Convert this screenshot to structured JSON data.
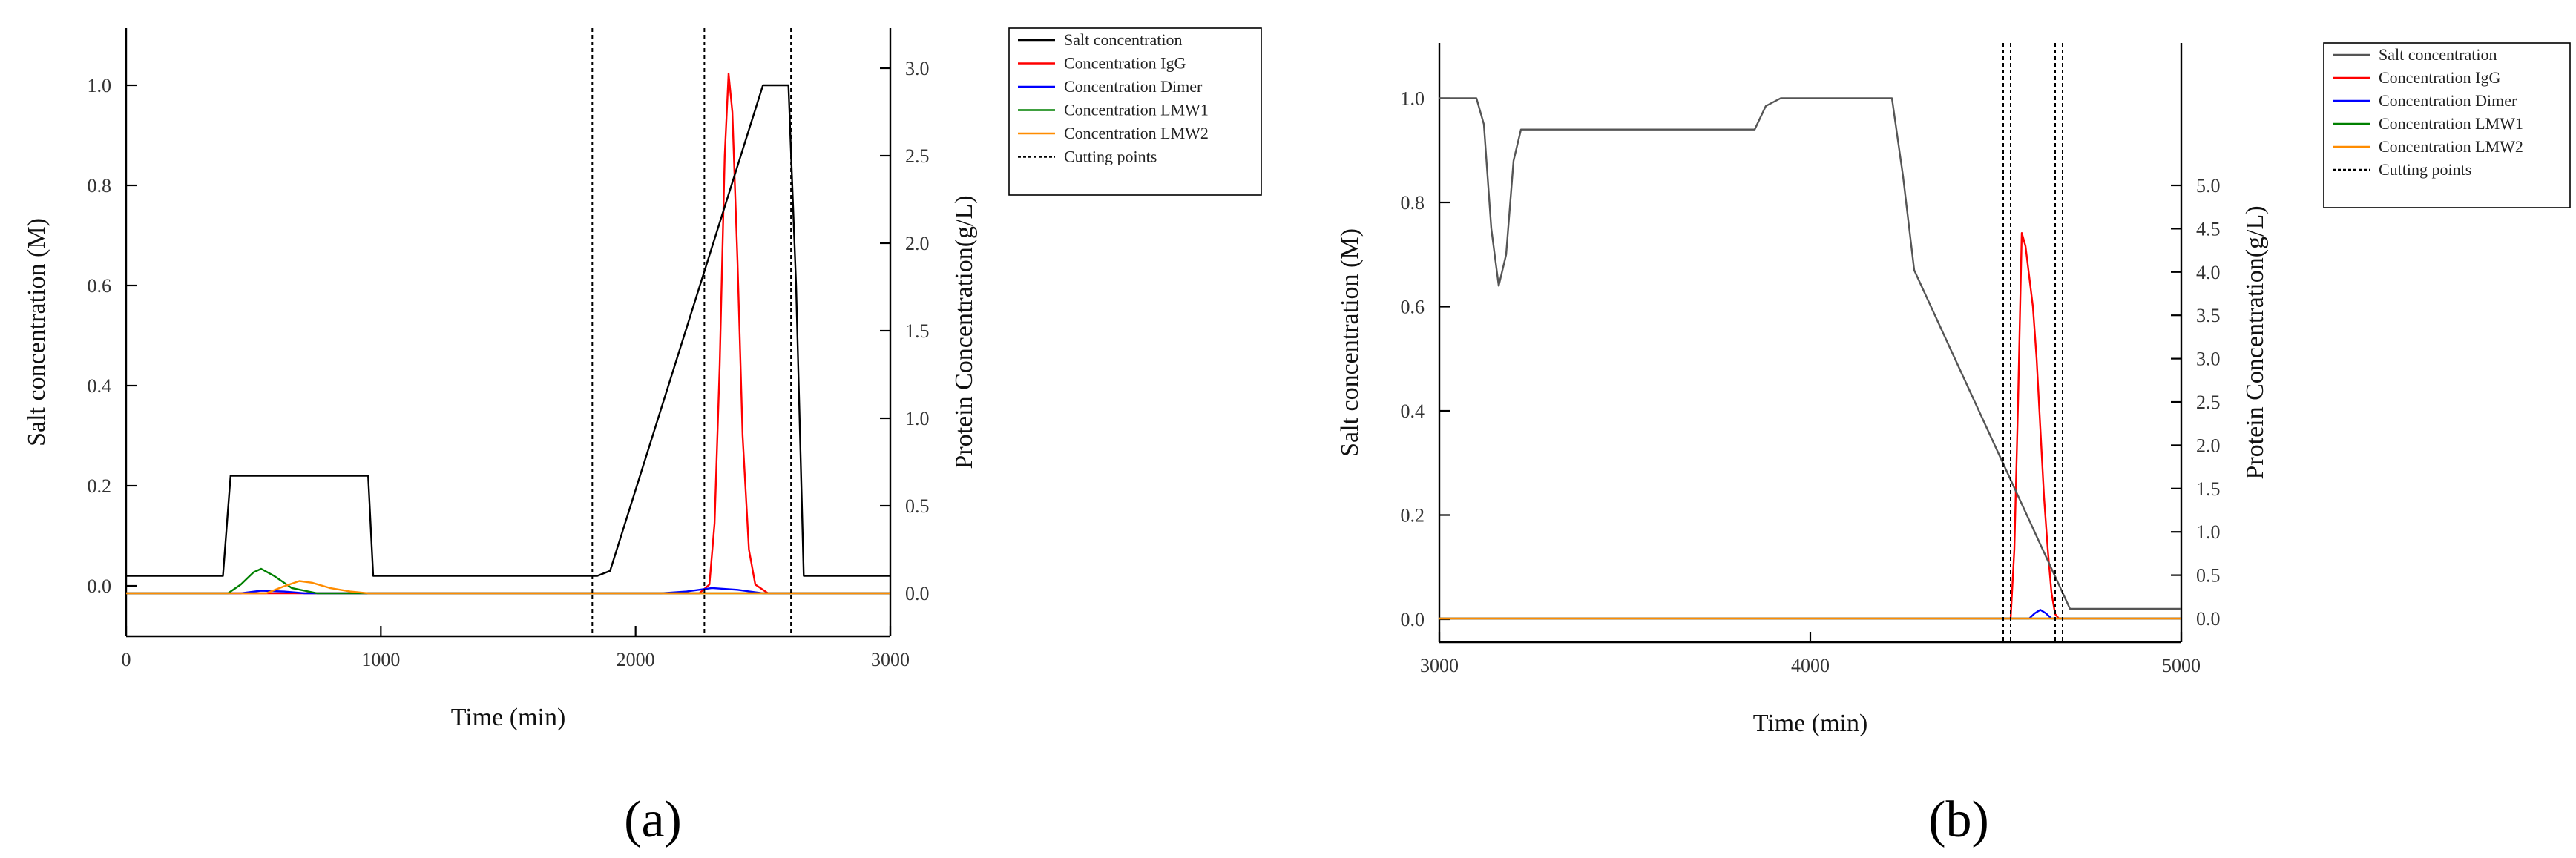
{
  "chart_data": [
    {
      "type": "line",
      "panel_label": "(a)",
      "xlabel": "Time (min)",
      "ylabel": "Salt concentration (M)",
      "y2label": "Protein Concentration(g/L)",
      "xlim": [
        0,
        3000
      ],
      "ylim": [
        -0.1,
        1.1
      ],
      "y2lim": [
        -0.28,
        3.21
      ],
      "xticks": [
        "0",
        "1000",
        "2000",
        "3000"
      ],
      "yticks": [
        "0.0",
        "0.2",
        "0.4",
        "0.6",
        "0.8",
        "1.0"
      ],
      "y2ticks": [
        "0.0",
        "0.5",
        "1.0",
        "1.5",
        "2.0",
        "2.5",
        "3.0"
      ],
      "legend_position": "outside-right",
      "series": [
        {
          "name": "Salt concentration",
          "color": "#000000",
          "axis": "left",
          "x": [
            0,
            380,
            410,
            950,
            970,
            1850,
            1900,
            2500,
            2600,
            2630,
            2660,
            3000
          ],
          "y": [
            0.02,
            0.02,
            0.22,
            0.22,
            0.02,
            0.02,
            0.03,
            1.0,
            1.0,
            0.6,
            0.02,
            0.02
          ]
        },
        {
          "name": "Concentration IgG",
          "color": "#ff0000",
          "axis": "right",
          "x": [
            0,
            2250,
            2290,
            2310,
            2330,
            2350,
            2365,
            2380,
            2400,
            2420,
            2445,
            2470,
            2520,
            3000
          ],
          "y": [
            0,
            0,
            0.05,
            0.4,
            1.3,
            2.5,
            2.97,
            2.75,
            1.9,
            0.9,
            0.25,
            0.05,
            0,
            0
          ]
        },
        {
          "name": "Concentration Dimer",
          "color": "#0000ff",
          "axis": "right",
          "x": [
            0,
            450,
            530,
            620,
            700,
            2100,
            2200,
            2300,
            2400,
            2500,
            3000
          ],
          "y": [
            0,
            0,
            0.015,
            0.01,
            0,
            0,
            0.01,
            0.03,
            0.02,
            0.0,
            0
          ]
        },
        {
          "name": "Concentration LMW1",
          "color": "#008000",
          "axis": "right",
          "x": [
            0,
            400,
            450,
            500,
            530,
            580,
            650,
            750,
            3000
          ],
          "y": [
            0,
            0,
            0.05,
            0.12,
            0.14,
            0.1,
            0.03,
            0,
            0
          ]
        },
        {
          "name": "Concentration LMW2",
          "color": "#ff8c00",
          "axis": "right",
          "x": [
            0,
            550,
            620,
            680,
            730,
            800,
            880,
            950,
            3000
          ],
          "y": [
            0,
            0,
            0.04,
            0.07,
            0.06,
            0.03,
            0.01,
            0,
            0
          ]
        }
      ],
      "cutting_points": {
        "name": "Cutting points",
        "color": "#000000",
        "x": [
          1830,
          2270,
          2610
        ]
      }
    },
    {
      "type": "line",
      "panel_label": "(b)",
      "xlabel": "Time (min)",
      "ylabel": "Salt concentration (M)",
      "y2label": "Protein Concentration(g/L)",
      "xlim": [
        3000,
        5000
      ],
      "ylim": [
        -0.15,
        1.1
      ],
      "y2lim": [
        -0.26,
        5.0
      ],
      "xticks": [
        "3000",
        "4000",
        "5000"
      ],
      "yticks": [
        "0.0",
        "0.2",
        "0.4",
        "0.6",
        "0.8",
        "1.0"
      ],
      "y2ticks": [
        "0.0",
        "0.5",
        "1.0",
        "1.5",
        "2.0",
        "2.5",
        "3.0",
        "3.5",
        "4.0",
        "4.5",
        "5.0"
      ],
      "legend_position": "outside-right",
      "series": [
        {
          "name": "Salt concentration",
          "color": "#555555",
          "axis": "left",
          "x": [
            3000,
            3100,
            3120,
            3140,
            3160,
            3180,
            3200,
            3220,
            3240,
            3850,
            3880,
            3920,
            4220,
            4250,
            4280,
            4700,
            4720,
            5000
          ],
          "y": [
            1.0,
            1.0,
            0.95,
            0.75,
            0.64,
            0.7,
            0.88,
            0.94,
            0.94,
            0.94,
            0.985,
            1.0,
            1.0,
            0.85,
            0.67,
            0.02,
            0.02,
            0.02
          ]
        },
        {
          "name": "Concentration IgG",
          "color": "#ff0000",
          "axis": "right",
          "x": [
            3000,
            4540,
            4550,
            4560,
            4570,
            4580,
            4590,
            4600,
            4610,
            4620,
            4630,
            4640,
            4650,
            4660,
            4670,
            5000
          ],
          "y": [
            0,
            0,
            0.8,
            2.5,
            4.45,
            4.3,
            3.95,
            3.6,
            3.0,
            2.2,
            1.4,
            0.8,
            0.3,
            0.05,
            0,
            0
          ]
        },
        {
          "name": "Concentration Dimer",
          "color": "#0000ff",
          "axis": "right",
          "x": [
            3000,
            4590,
            4605,
            4620,
            4635,
            4650,
            5000
          ],
          "y": [
            0,
            0,
            0.06,
            0.1,
            0.06,
            0,
            0
          ]
        },
        {
          "name": "Concentration LMW1",
          "color": "#008000",
          "axis": "right",
          "x": [
            3000,
            5000
          ],
          "y": [
            0,
            0
          ]
        },
        {
          "name": "Concentration LMW2",
          "color": "#ff8c00",
          "axis": "right",
          "x": [
            3000,
            5000
          ],
          "y": [
            0,
            0
          ]
        }
      ],
      "cutting_points": {
        "name": "Cutting points",
        "color": "#000000",
        "x": [
          4520,
          4540,
          4660,
          4680
        ]
      }
    }
  ]
}
